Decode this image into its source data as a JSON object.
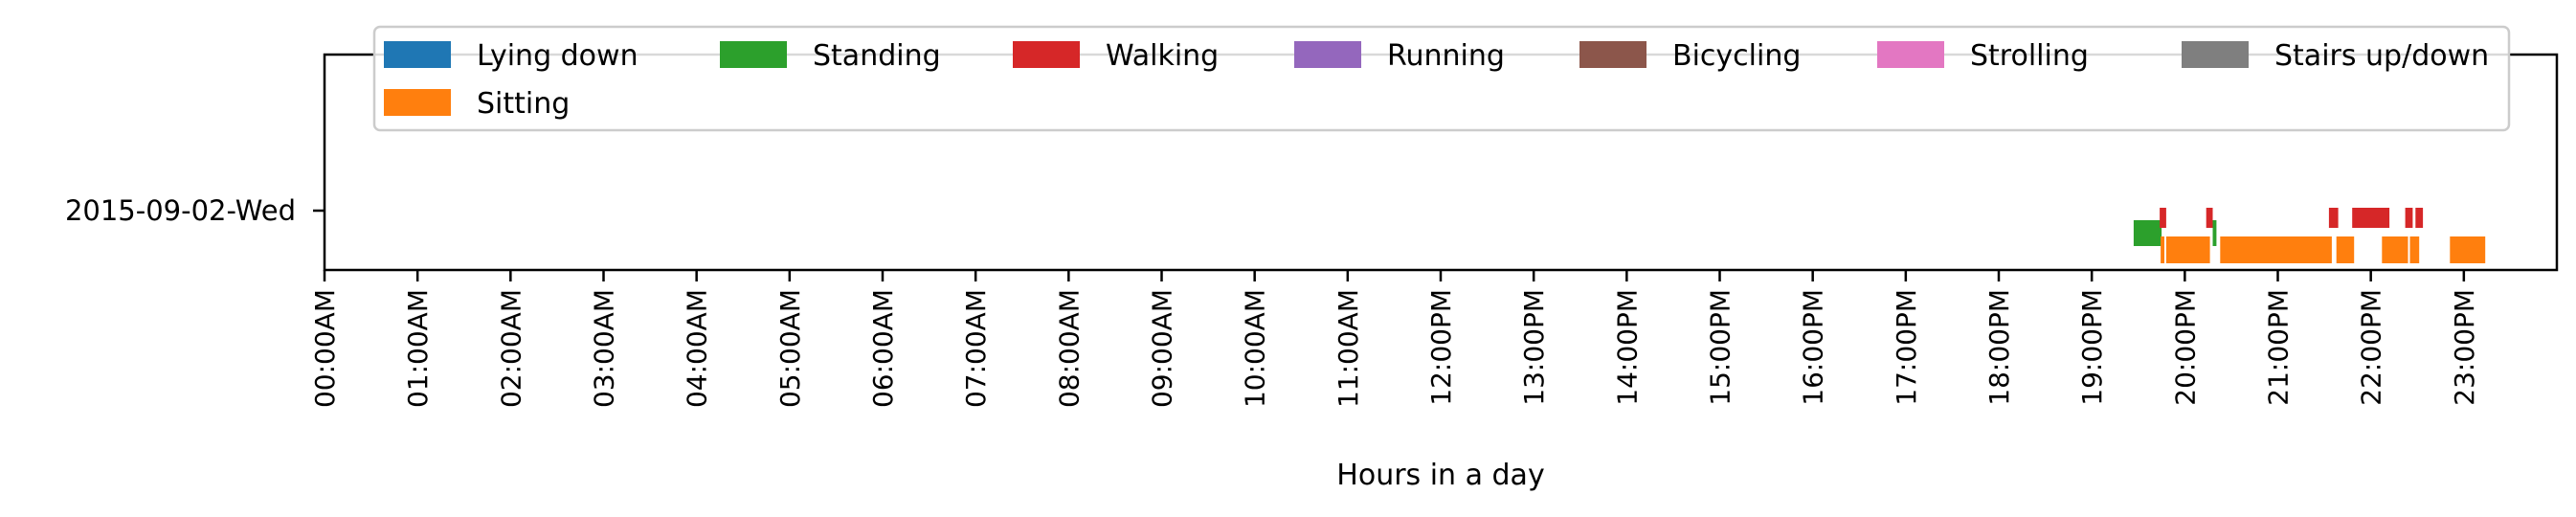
{
  "chart_data": {
    "type": "timeline",
    "xlabel": "Hours in a day",
    "ylabel": "",
    "title": "",
    "x_range_hours": [
      0,
      24
    ],
    "xticks": [
      "00:00AM",
      "01:00AM",
      "02:00AM",
      "03:00AM",
      "04:00AM",
      "05:00AM",
      "06:00AM",
      "07:00AM",
      "08:00AM",
      "09:00AM",
      "10:00AM",
      "11:00AM",
      "12:00PM",
      "13:00PM",
      "14:00PM",
      "15:00PM",
      "16:00PM",
      "17:00PM",
      "18:00PM",
      "19:00PM",
      "20:00PM",
      "21:00PM",
      "22:00PM",
      "23:00PM"
    ],
    "rows": [
      "2015-09-02-Wed"
    ],
    "legend_position": "top",
    "legend": [
      {
        "name": "Lying down",
        "color": "#1f77b4"
      },
      {
        "name": "Standing",
        "color": "#2ca02c"
      },
      {
        "name": "Walking",
        "color": "#d62728"
      },
      {
        "name": "Running",
        "color": "#9467bd"
      },
      {
        "name": "Bicycling",
        "color": "#8c564b"
      },
      {
        "name": "Strolling",
        "color": "#e377c2"
      },
      {
        "name": "Stairs up/down",
        "color": "#7f7f7f"
      },
      {
        "name": "Sitting",
        "color": "#ff7f0e"
      }
    ],
    "segments": [
      {
        "row": 0,
        "activity": "Standing",
        "start": 19.45,
        "end": 19.75
      },
      {
        "row": 0,
        "activity": "Walking",
        "start": 19.73,
        "end": 19.8
      },
      {
        "row": 0,
        "activity": "Sitting",
        "start": 19.74,
        "end": 19.78
      },
      {
        "row": 0,
        "activity": "Sitting",
        "start": 19.8,
        "end": 20.27
      },
      {
        "row": 0,
        "activity": "Walking",
        "start": 20.23,
        "end": 20.3
      },
      {
        "row": 0,
        "activity": "Standing",
        "start": 20.3,
        "end": 20.34
      },
      {
        "row": 0,
        "activity": "Sitting",
        "start": 20.38,
        "end": 21.58
      },
      {
        "row": 0,
        "activity": "Walking",
        "start": 21.55,
        "end": 21.65
      },
      {
        "row": 0,
        "activity": "Sitting",
        "start": 21.63,
        "end": 21.82
      },
      {
        "row": 0,
        "activity": "Walking",
        "start": 21.8,
        "end": 22.2
      },
      {
        "row": 0,
        "activity": "Sitting",
        "start": 22.12,
        "end": 22.4
      },
      {
        "row": 0,
        "activity": "Walking",
        "start": 22.37,
        "end": 22.45
      },
      {
        "row": 0,
        "activity": "Sitting",
        "start": 22.42,
        "end": 22.52
      },
      {
        "row": 0,
        "activity": "Walking",
        "start": 22.48,
        "end": 22.56
      },
      {
        "row": 0,
        "activity": "Sitting",
        "start": 22.85,
        "end": 23.23
      }
    ]
  }
}
